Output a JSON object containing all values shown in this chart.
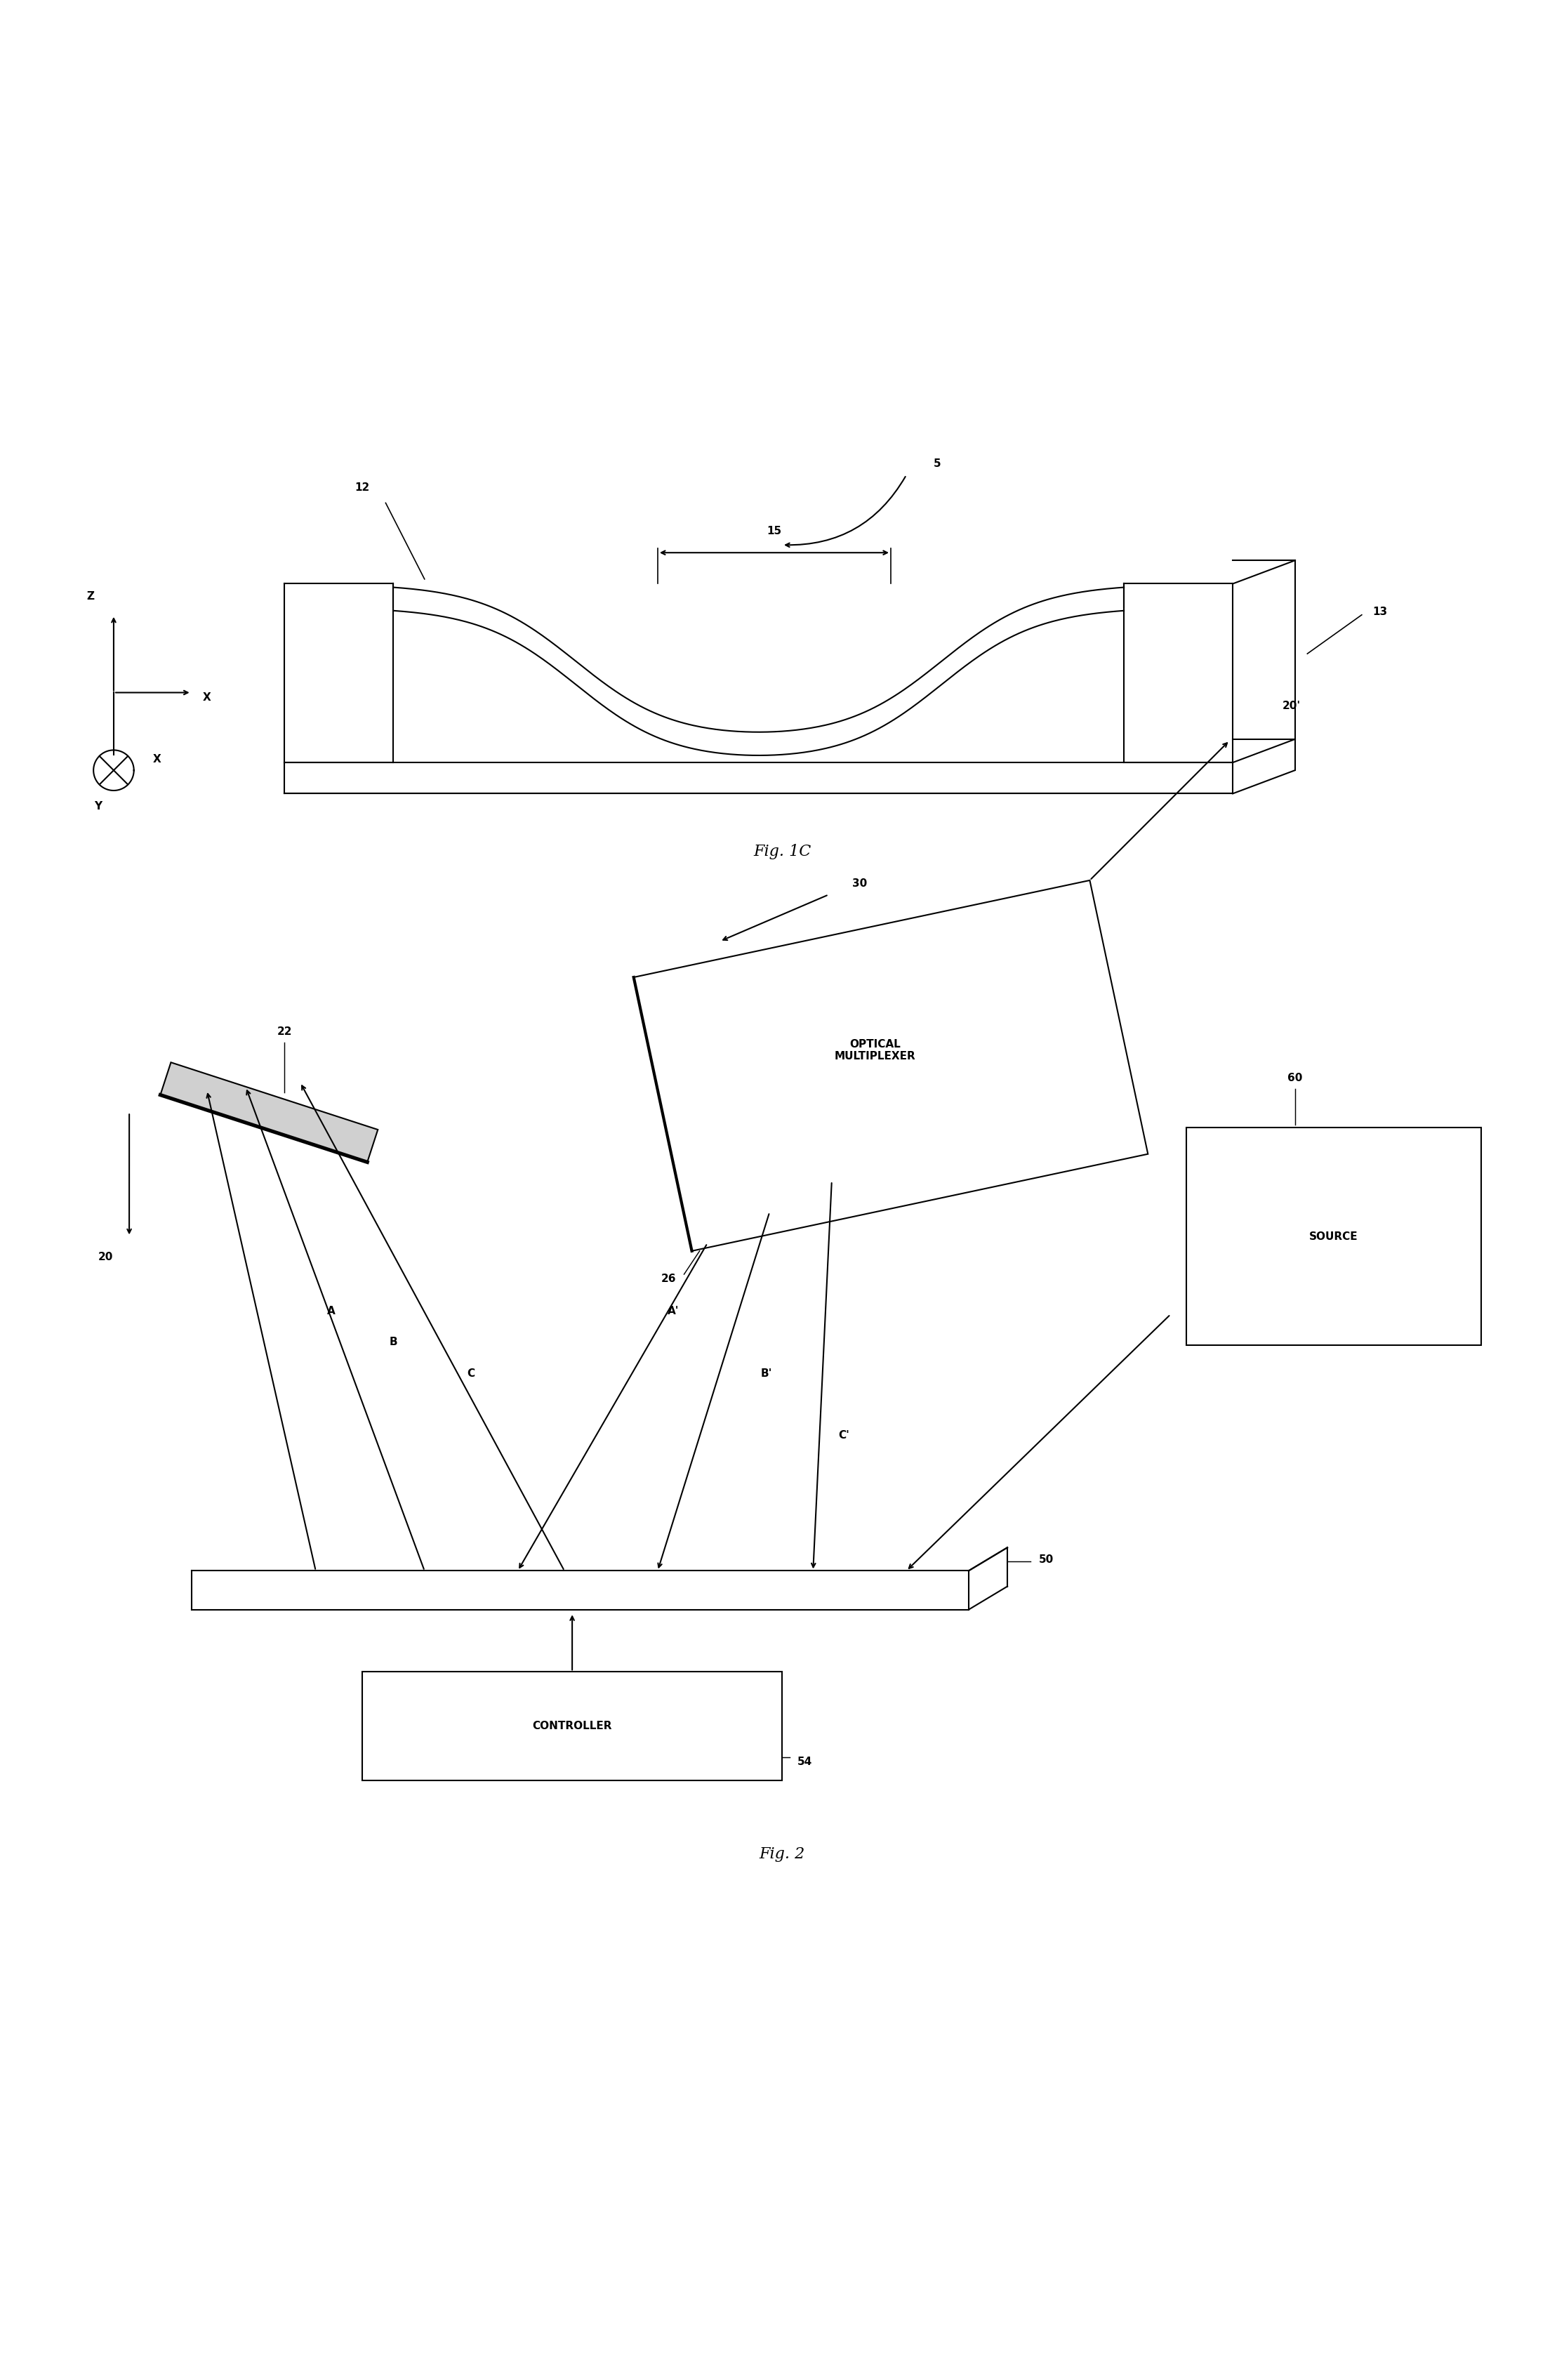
{
  "bg_color": "#ffffff",
  "fig_width": 22.28,
  "fig_height": 33.9,
  "fig1c_label": "Fig. 1C",
  "fig2_label": "Fig. 2",
  "label_5": "5",
  "label_12": "12",
  "label_13": "13",
  "label_15": "15",
  "label_22": "22",
  "label_20": "20",
  "label_20p": "20'",
  "label_26": "26",
  "label_30": "30",
  "label_50": "50",
  "label_54": "54",
  "label_60": "60",
  "label_A": "A",
  "label_B": "B",
  "label_C": "C",
  "label_Ap": "A'",
  "label_Bp": "B'",
  "label_Cp": "C'",
  "optical_multiplexer": "OPTICAL\nMULTIPLEXER",
  "source_text": "SOURCE",
  "controller_text": "CONTROLLER"
}
